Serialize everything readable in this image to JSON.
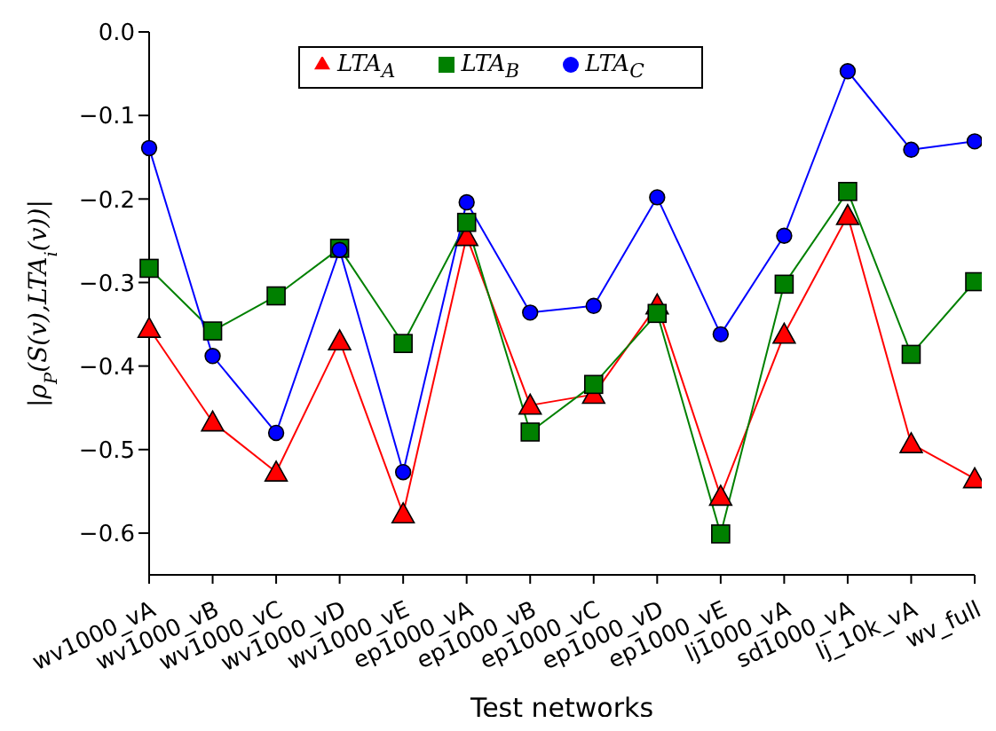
{
  "chart_data": {
    "type": "line",
    "xlabel": "Test networks",
    "ylabel": "|ρ$_{P}$(S(v),LTA$_{i}$(v))|",
    "categories": [
      "wv1000_vA",
      "wv1000_vB",
      "wv1000_vC",
      "wv1000_vD",
      "wv1000_vE",
      "ep1000_vA",
      "ep1000_vB",
      "ep1000_vC",
      "ep1000_vD",
      "ep1000_vE",
      "lj1000_vA",
      "sd1000_vA",
      "lj_10k_vA",
      "wv_full"
    ],
    "series": [
      {
        "name": "LTA$_{A}$",
        "color": "#ff0000",
        "marker": "triangle",
        "values": [
          -0.355,
          -0.467,
          -0.527,
          -0.37,
          -0.577,
          -0.245,
          -0.447,
          -0.434,
          -0.327,
          -0.556,
          -0.362,
          -0.22,
          -0.493,
          -0.535
        ]
      },
      {
        "name": "LTA$_{B}$",
        "color": "#008000",
        "marker": "square",
        "values": [
          -0.283,
          -0.358,
          -0.316,
          -0.259,
          -0.373,
          -0.228,
          -0.479,
          -0.422,
          -0.337,
          -0.601,
          -0.302,
          -0.191,
          -0.386,
          -0.299
        ]
      },
      {
        "name": "LTA$_{C}$",
        "color": "#0000ff",
        "marker": "circle",
        "values": [
          -0.139,
          -0.388,
          -0.48,
          -0.261,
          -0.527,
          -0.204,
          -0.336,
          -0.328,
          -0.198,
          -0.362,
          -0.244,
          -0.047,
          -0.141,
          -0.131
        ]
      }
    ],
    "ylim": [
      -0.65,
      0
    ],
    "yticks": [
      {
        "value": 0,
        "label": "0.0"
      },
      -0.1,
      -0.2,
      -0.3,
      -0.4,
      -0.5,
      -0.6
    ],
    "grid": false,
    "legend": "top"
  }
}
